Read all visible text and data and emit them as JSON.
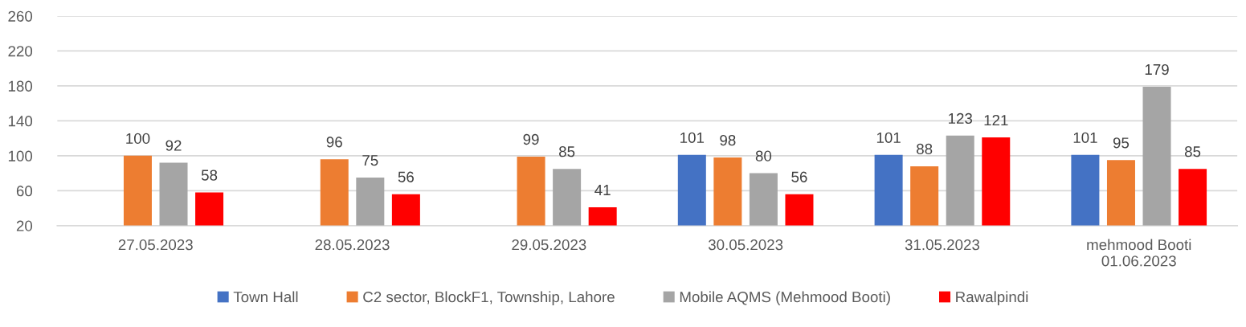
{
  "chart_data": {
    "type": "bar",
    "categories": [
      "27.05.2023",
      "28.05.2023",
      "29.05.2023",
      "30.05.2023",
      "31.05.2023",
      "mehmood Booti\n01.06.2023"
    ],
    "series": [
      {
        "name": "Town Hall",
        "color": "#4472c4",
        "values": [
          null,
          null,
          null,
          101,
          101,
          101
        ]
      },
      {
        "name": "C2 sector, BlockF1, Township, Lahore",
        "color": "#ed7d31",
        "values": [
          100,
          96,
          99,
          98,
          88,
          95
        ]
      },
      {
        "name": "Mobile AQMS (Mehmood Booti)",
        "color": "#a5a5a5",
        "values": [
          92,
          75,
          85,
          80,
          123,
          179
        ]
      },
      {
        "name": "Rawalpindi",
        "color": "#ff0000",
        "values": [
          58,
          56,
          41,
          56,
          121,
          85
        ]
      }
    ],
    "ylim": [
      20,
      260
    ],
    "yticks": [
      20,
      60,
      100,
      140,
      180,
      220,
      260
    ],
    "grid": "y",
    "legend": "bottom",
    "data_labels": true
  }
}
